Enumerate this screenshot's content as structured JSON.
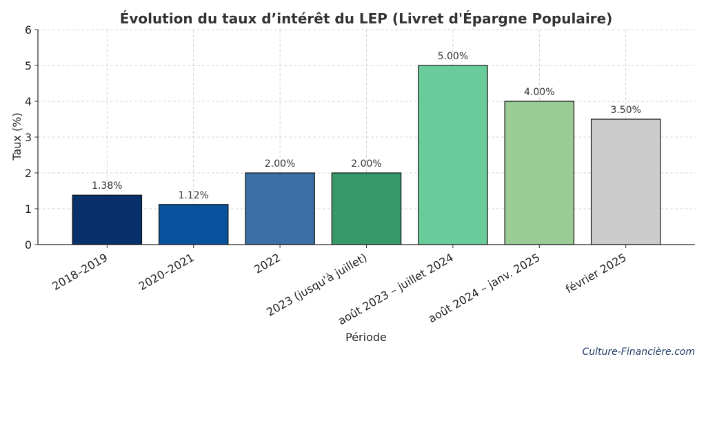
{
  "chart_data": {
    "type": "bar",
    "title": "Évolution du taux d’intérêt du LEP (Livret d'Épargne Populaire)",
    "xlabel": "Période",
    "ylabel": "Taux (%)",
    "ylim": [
      0,
      6
    ],
    "yticks": [
      0,
      1,
      2,
      3,
      4,
      5,
      6
    ],
    "grid": true,
    "categories": [
      "2018–2019",
      "2020–2021",
      "2022",
      "2023 (jusqu'à juillet)",
      "août 2023 – juillet 2024",
      "août 2024 – janv. 2025",
      "février 2025"
    ],
    "values": [
      1.38,
      1.12,
      2.0,
      2.0,
      5.0,
      4.0,
      3.5
    ],
    "value_labels": [
      "1.38%",
      "1.12%",
      "2.00%",
      "2.00%",
      "5.00%",
      "4.00%",
      "3.50%"
    ],
    "colors": [
      "#08306b",
      "#08519c",
      "#3a6ea5",
      "#37986a",
      "#6acc9a",
      "#9bcc96",
      "#cccccc"
    ],
    "edge_color": "#111111"
  },
  "watermark": "Culture-Financière.com"
}
